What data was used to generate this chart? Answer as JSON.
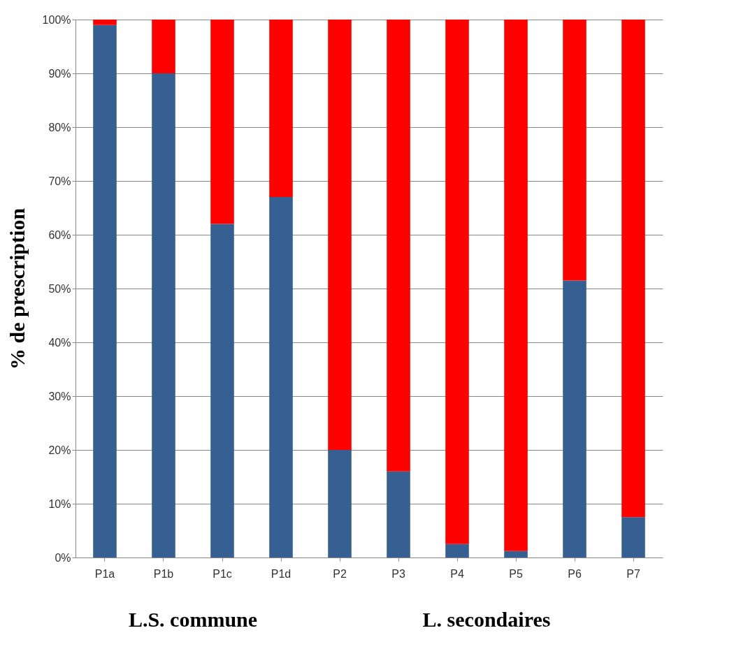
{
  "chart_data": {
    "type": "bar",
    "stacked": true,
    "ylabel": "% de prescription",
    "categories": [
      "P1a",
      "P1b",
      "P1c",
      "P1d",
      "P2",
      "P3",
      "P4",
      "P5",
      "P6",
      "P7"
    ],
    "series": [
      {
        "color": "#376092",
        "values": [
          99,
          90,
          62,
          67,
          20,
          16,
          2.5,
          1.2,
          51.5,
          7.5
        ]
      },
      {
        "color": "#ff0000",
        "values": [
          1,
          10,
          38,
          33,
          80,
          84,
          97.5,
          98.8,
          48.5,
          92.5
        ]
      }
    ],
    "ylim": [
      0,
      100
    ],
    "yticks": [
      {
        "value": 0,
        "label": "0%"
      },
      {
        "value": 10,
        "label": "10%"
      },
      {
        "value": 20,
        "label": "20%"
      },
      {
        "value": 30,
        "label": "30%"
      },
      {
        "value": 40,
        "label": "40%"
      },
      {
        "value": 50,
        "label": "50%"
      },
      {
        "value": 60,
        "label": "60%"
      },
      {
        "value": 70,
        "label": "70%"
      },
      {
        "value": 80,
        "label": "80%"
      },
      {
        "value": 90,
        "label": "90%"
      },
      {
        "value": 100,
        "label": "100%"
      }
    ],
    "grid": "y",
    "legend": false,
    "annotations": [
      "L.S. commune",
      "L. secondaires"
    ]
  }
}
